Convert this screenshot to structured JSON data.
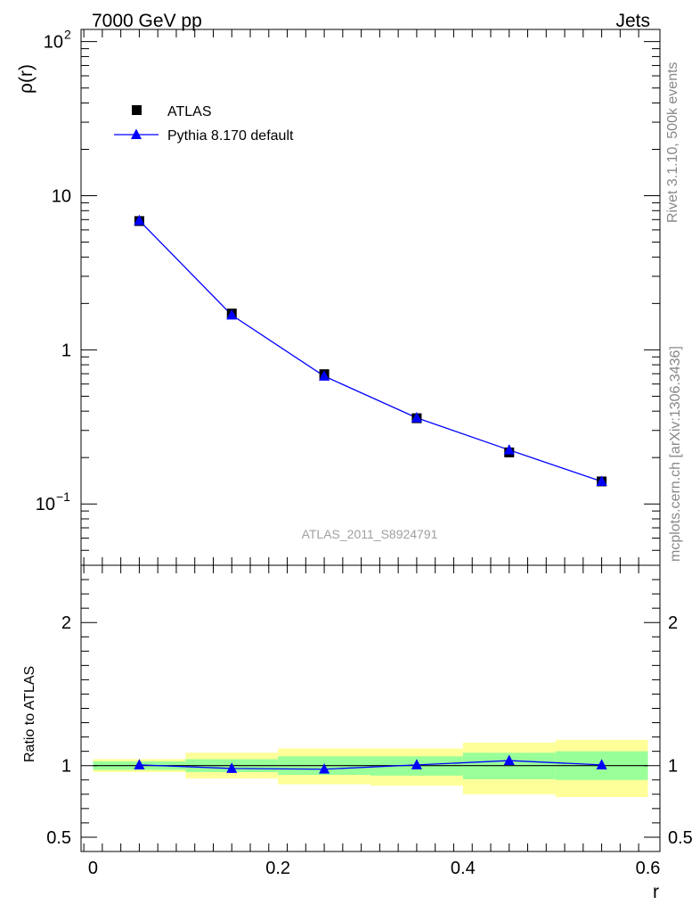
{
  "header": {
    "left_title": "7000 GeV pp",
    "right_title": "Jets"
  },
  "side_labels": {
    "rivet": "Rivet 3.1.10,  500k events",
    "mcplots": "mcplots.cern.ch [arXiv:1306.3436]"
  },
  "watermark": "ATLAS_2011_S8924791",
  "chart_data": [
    {
      "type": "scatter",
      "panel": "main",
      "ylabel": "ρ(r)",
      "yscale": "log",
      "ylim": [
        0.04,
        120
      ],
      "xlim": [
        -0.013,
        0.613
      ],
      "yticks": [
        {
          "value": 0.1,
          "label": "10",
          "sup": "−1"
        },
        {
          "value": 1,
          "label": "1",
          "sup": ""
        },
        {
          "value": 10,
          "label": "10",
          "sup": ""
        },
        {
          "value": 100,
          "label": "10",
          "sup": "2"
        }
      ],
      "legend": {
        "position": "top-left",
        "entries": [
          {
            "label": "ATLAS",
            "marker": "square",
            "color": "#000000"
          },
          {
            "label": "Pythia 8.170 default",
            "marker": "triangle",
            "color": "#0000ff"
          }
        ]
      },
      "series": [
        {
          "name": "ATLAS",
          "x": [
            0.05,
            0.15,
            0.25,
            0.35,
            0.45,
            0.55
          ],
          "values": [
            6.85,
            1.72,
            0.695,
            0.36,
            0.216,
            0.14
          ],
          "marker": "square",
          "color": "#000000"
        },
        {
          "name": "Pythia 8.170 default",
          "x": [
            0.05,
            0.15,
            0.25,
            0.35,
            0.45,
            0.55
          ],
          "values": [
            6.9,
            1.68,
            0.675,
            0.362,
            0.224,
            0.14
          ],
          "marker": "triangle",
          "color": "#0000ff"
        }
      ]
    },
    {
      "type": "line",
      "panel": "ratio",
      "ylabel": "Ratio to ATLAS",
      "xlabel": "r",
      "ylim": [
        0.4,
        2.4
      ],
      "xlim": [
        -0.013,
        0.613
      ],
      "xticks": [
        0,
        0.2,
        0.4,
        0.6
      ],
      "xtick_labels": [
        "0",
        "0.2",
        "0.4",
        "0.6"
      ],
      "yticks": [
        0.5,
        1,
        2
      ],
      "ytick_labels": [
        "0.5",
        "1",
        "2"
      ],
      "bins": [
        [
          0,
          0.1
        ],
        [
          0.1,
          0.2
        ],
        [
          0.2,
          0.3
        ],
        [
          0.3,
          0.4
        ],
        [
          0.4,
          0.5
        ],
        [
          0.5,
          0.6
        ]
      ],
      "yellow_band": [
        [
          0.955,
          1.045
        ],
        [
          0.91,
          1.09
        ],
        [
          0.87,
          1.12
        ],
        [
          0.86,
          1.12
        ],
        [
          0.8,
          1.16
        ],
        [
          0.78,
          1.18
        ]
      ],
      "green_band": [
        [
          0.97,
          1.03
        ],
        [
          0.955,
          1.045
        ],
        [
          0.935,
          1.065
        ],
        [
          0.93,
          1.065
        ],
        [
          0.905,
          1.09
        ],
        [
          0.9,
          1.1
        ]
      ],
      "series": [
        {
          "name": "Pythia 8.170 default",
          "x": [
            0.05,
            0.15,
            0.25,
            0.35,
            0.45,
            0.55
          ],
          "values": [
            1.005,
            0.98,
            0.975,
            1.005,
            1.035,
            1.005
          ],
          "marker": "triangle",
          "color": "#0000ff"
        }
      ],
      "reference_line": 1
    }
  ],
  "colors": {
    "yellow_band": "#ffff99",
    "green_band": "#99ff99",
    "mc": "#0000ff",
    "data": "#000000",
    "side_text": "#888888",
    "watermark": "#a0a0a0"
  }
}
